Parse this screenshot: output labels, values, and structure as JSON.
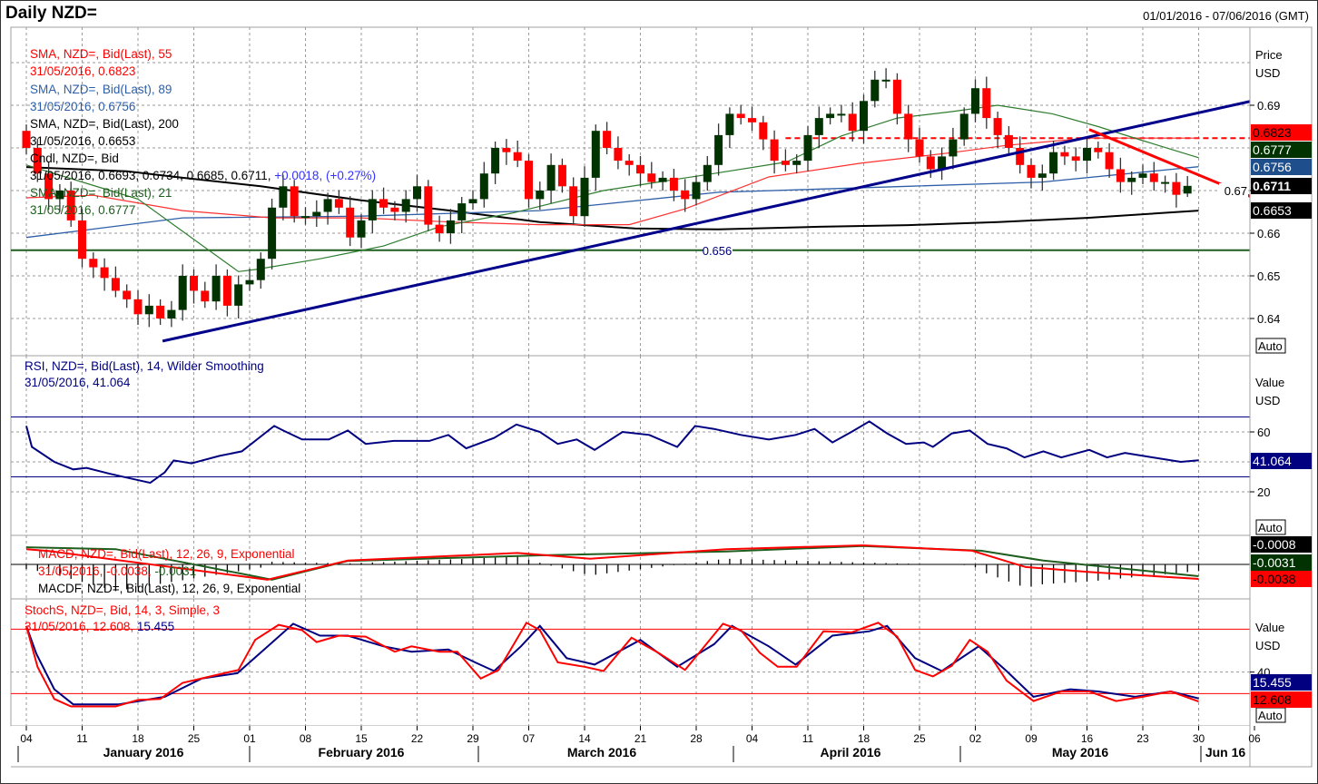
{
  "header": {
    "title": "Daily NZD=",
    "range": "01/01/2016 - 07/06/2016 (GMT)"
  },
  "legends": {
    "sma55": {
      "name": "SMA, NZD=, Bid(Last),  55",
      "value": "31/05/2016, 0.6823",
      "color": "#ff0000"
    },
    "sma89": {
      "name": "SMA, NZD=, Bid(Last),  89",
      "value": "31/05/2016, 0.6756",
      "color": "#2e5fa8"
    },
    "sma200": {
      "name": "SMA, NZD=, Bid(Last),  200",
      "value": "31/05/2016, 0.6653",
      "color": "#000000"
    },
    "cndl": {
      "name": "Cndl, NZD=, Bid",
      "value": "31/05/2016, 0.6693, 0.6734, 0.6685, 0.6711,",
      "change": "+0.0018, (+0.27%)",
      "color": "#000000",
      "change_color": "#3333ff"
    },
    "sma21": {
      "name": "SMA, NZD=, Bid(Last),  21",
      "value": "31/05/2016, 0.6777",
      "color": "#1e5e1e"
    },
    "rsi": {
      "name": "RSI, NZD=, Bid(Last),  14, Wilder Smoothing",
      "value": "31/05/2016, 41.064",
      "color": "#000080"
    },
    "macd": {
      "name": "MACD, NZD=, Bid(Last),  12, 26, 9, Exponential",
      "value": "31/05/2016, -0.0038,",
      "value2": "-0.0031",
      "color": "#ff0000"
    },
    "macdf": {
      "name": "MACDF, NZD=, Bid(Last),  12, 26, 9, Exponential",
      "color": "#000000"
    },
    "stoch": {
      "name": "StochS, NZD=, Bid,  14, 3, Simple, 3",
      "value": "31/05/2016, 12.608,",
      "value2": "15.455",
      "color": "#ff0000"
    }
  },
  "right_axis": {
    "price": {
      "title": "Price",
      "unit": "USD",
      "ticks": [
        "0.69",
        "0.67",
        "0.66",
        "0.65",
        "0.64"
      ],
      "auto": "Auto"
    },
    "rsi": {
      "title": "Value",
      "unit": "USD",
      "ticks": [
        "60",
        "20"
      ],
      "auto": "Auto"
    },
    "stoch": {
      "title": "Value",
      "unit": "USD",
      "ticks": [
        "40"
      ],
      "auto": "Auto"
    },
    "badges": [
      {
        "pane": "price",
        "value": "0.6823",
        "bg": "#ff0000",
        "fg": "#000"
      },
      {
        "pane": "price",
        "value": "0.6777",
        "bg": "#003300",
        "fg": "#fff"
      },
      {
        "pane": "price",
        "value": "0.6756",
        "bg": "#1f4e8c",
        "fg": "#fff"
      },
      {
        "pane": "price",
        "value": "0.6711",
        "bg": "#000000",
        "fg": "#fff"
      },
      {
        "pane": "price",
        "value": "0.6653",
        "bg": "#000000",
        "fg": "#fff"
      },
      {
        "pane": "rsi",
        "value": "41.064",
        "bg": "#000080",
        "fg": "#fff"
      },
      {
        "pane": "macd",
        "value": "-0.0008",
        "bg": "#000000",
        "fg": "#fff"
      },
      {
        "pane": "macd",
        "value": "-0.0031",
        "bg": "#003300",
        "fg": "#fff"
      },
      {
        "pane": "macd",
        "value": "-0.0038",
        "bg": "#ff0000",
        "fg": "#000"
      },
      {
        "pane": "stoch",
        "value": "15.455",
        "bg": "#000080",
        "fg": "#fff"
      },
      {
        "pane": "stoch",
        "value": "12.608",
        "bg": "#ff0000",
        "fg": "#000"
      }
    ]
  },
  "x_axis": {
    "day_labels": [
      "04",
      "11",
      "18",
      "25",
      "01",
      "08",
      "15",
      "22",
      "29",
      "07",
      "14",
      "21",
      "28",
      "04",
      "11",
      "18",
      "25",
      "02",
      "09",
      "16",
      "23",
      "30",
      "06"
    ],
    "months": [
      "January 2016",
      "February 2016",
      "March 2016",
      "April 2016",
      "May 2016",
      "Jun 16"
    ]
  },
  "chart_data": {
    "type": "candlestick",
    "title": "Daily NZD=",
    "ylabel": "Price USD",
    "ylim": [
      0.632,
      0.705
    ],
    "closes": [
      0.68,
      0.674,
      0.668,
      0.67,
      0.663,
      0.654,
      0.652,
      0.6495,
      0.6465,
      0.6445,
      0.641,
      0.643,
      0.64,
      0.642,
      0.65,
      0.6465,
      0.644,
      0.65,
      0.643,
      0.648,
      0.649,
      0.654,
      0.666,
      0.671,
      0.664,
      0.664,
      0.665,
      0.668,
      0.666,
      0.659,
      0.663,
      0.668,
      0.666,
      0.665,
      0.668,
      0.671,
      0.662,
      0.66,
      0.663,
      0.667,
      0.668,
      0.674,
      0.68,
      0.679,
      0.677,
      0.668,
      0.67,
      0.676,
      0.671,
      0.664,
      0.673,
      0.684,
      0.68,
      0.677,
      0.676,
      0.674,
      0.672,
      0.673,
      0.67,
      0.668,
      0.672,
      0.676,
      0.683,
      0.688,
      0.687,
      0.686,
      0.682,
      0.677,
      0.676,
      0.677,
      0.683,
      0.687,
      0.688,
      0.688,
      0.684,
      0.691,
      0.696,
      0.696,
      0.688,
      0.682,
      0.678,
      0.675,
      0.678,
      0.682,
      0.688,
      0.694,
      0.687,
      0.683,
      0.68,
      0.676,
      0.673,
      0.674,
      0.679,
      0.678,
      0.677,
      0.68,
      0.679,
      0.675,
      0.672,
      0.673,
      0.674,
      0.672,
      0.672,
      0.669,
      0.6711
    ],
    "last_ohlc": {
      "open": 0.6693,
      "high": 0.6734,
      "low": 0.6685,
      "close": 0.6711
    },
    "overlays": {
      "sma21": [
        [
          0,
          0.676
        ],
        [
          10,
          0.668
        ],
        [
          19,
          0.651
        ],
        [
          20.6,
          0.6515
        ],
        [
          26.3,
          0.654
        ],
        [
          32,
          0.657
        ],
        [
          37,
          0.6615
        ],
        [
          43.5,
          0.6647
        ],
        [
          51.7,
          0.67
        ],
        [
          56.6,
          0.672
        ],
        [
          61.6,
          0.674
        ],
        [
          68.1,
          0.6767
        ],
        [
          73,
          0.6828
        ],
        [
          78,
          0.687
        ],
        [
          82.9,
          0.6885
        ],
        [
          87,
          0.69
        ],
        [
          91.9,
          0.688
        ],
        [
          96,
          0.685
        ],
        [
          100,
          0.6817
        ],
        [
          105,
          0.6777
        ]
      ],
      "sma55": [
        [
          0,
          0.6683
        ],
        [
          6,
          0.6689
        ],
        [
          14,
          0.6653
        ],
        [
          22,
          0.6636
        ],
        [
          30,
          0.6636
        ],
        [
          38.3,
          0.6626
        ],
        [
          46,
          0.662
        ],
        [
          54,
          0.662
        ],
        [
          59,
          0.6657
        ],
        [
          66.5,
          0.6732
        ],
        [
          74.7,
          0.6764
        ],
        [
          82.9,
          0.6789
        ],
        [
          87.8,
          0.6806
        ],
        [
          95,
          0.6823
        ],
        [
          105,
          0.6823
        ]
      ],
      "sma89": [
        [
          0,
          0.659
        ],
        [
          14,
          0.6636
        ],
        [
          30,
          0.664
        ],
        [
          46,
          0.6653
        ],
        [
          62,
          0.6696
        ],
        [
          79,
          0.671
        ],
        [
          91,
          0.672
        ],
        [
          105,
          0.6756
        ]
      ],
      "sma200": [
        [
          0,
          0.6755
        ],
        [
          9,
          0.6745
        ],
        [
          14,
          0.673
        ],
        [
          21,
          0.671
        ],
        [
          30,
          0.6677
        ],
        [
          38,
          0.6653
        ],
        [
          46,
          0.6626
        ],
        [
          54.5,
          0.6611
        ],
        [
          62,
          0.6609
        ],
        [
          71,
          0.6615
        ],
        [
          79,
          0.6619
        ],
        [
          87,
          0.6626
        ],
        [
          95,
          0.6636
        ],
        [
          105,
          0.6653
        ]
      ]
    },
    "trendlines": [
      {
        "name": "uptrend",
        "color": "#00008b",
        "points": [
          [
            12.2,
            0.6347
          ],
          [
            110.3,
            0.6913
          ]
        ]
      },
      {
        "name": "downtrend",
        "color": "#ff0000",
        "points": [
          [
            95.2,
            0.6843
          ],
          [
            110.3,
            0.6679
          ]
        ]
      }
    ],
    "horizontal_levels": [
      {
        "value": 0.656,
        "label": "0.656",
        "color": "#1e5e1e",
        "style": "solid"
      },
      {
        "value": 0.6823,
        "color": "#ff0000",
        "style": "dashed",
        "from": 68
      }
    ],
    "rsi": {
      "period": 14,
      "levels": [
        70,
        30
      ],
      "points": [
        [
          0,
          64
        ],
        [
          0.5,
          50
        ],
        [
          2.5,
          40
        ],
        [
          4.2,
          35
        ],
        [
          5.4,
          36
        ],
        [
          7.5,
          32
        ],
        [
          9.9,
          28
        ],
        [
          11.1,
          26
        ],
        [
          12.4,
          33
        ],
        [
          13.2,
          41
        ],
        [
          14.8,
          39
        ],
        [
          17.3,
          44
        ],
        [
          19.3,
          47
        ],
        [
          22.2,
          64
        ],
        [
          23,
          61
        ],
        [
          24.7,
          55
        ],
        [
          27.1,
          55
        ],
        [
          28.8,
          61
        ],
        [
          30.4,
          52
        ],
        [
          32.9,
          54
        ],
        [
          36.1,
          54
        ],
        [
          37.8,
          58
        ],
        [
          39.4,
          49
        ],
        [
          41.9,
          56
        ],
        [
          43.9,
          65
        ],
        [
          46,
          60
        ],
        [
          47.6,
          52
        ],
        [
          49.3,
          55
        ],
        [
          50.9,
          48
        ],
        [
          53.4,
          60
        ],
        [
          55.8,
          58
        ],
        [
          58.3,
          50
        ],
        [
          59.9,
          64
        ],
        [
          61.6,
          62
        ],
        [
          64,
          58
        ],
        [
          66.5,
          55
        ],
        [
          68.9,
          58
        ],
        [
          70.6,
          62
        ],
        [
          72.2,
          53
        ],
        [
          73.9,
          60
        ],
        [
          75.5,
          67
        ],
        [
          77.1,
          59
        ],
        [
          78.8,
          52
        ],
        [
          80.4,
          53
        ],
        [
          81.2,
          50
        ],
        [
          82.9,
          59
        ],
        [
          84.5,
          61
        ],
        [
          86.1,
          52
        ],
        [
          87.8,
          49
        ],
        [
          89.4,
          43
        ],
        [
          91.1,
          47
        ],
        [
          92.7,
          43
        ],
        [
          95.2,
          48
        ],
        [
          96.8,
          43
        ],
        [
          98.4,
          46
        ],
        [
          100.9,
          43
        ],
        [
          103.4,
          40
        ],
        [
          105,
          41.064
        ]
      ]
    },
    "macd": {
      "macd": [
        [
          0,
          0.004
        ],
        [
          2,
          0.0035
        ],
        [
          21.6,
          -0.004
        ],
        [
          28.8,
          0.001
        ],
        [
          44,
          0.003
        ],
        [
          50.5,
          0.0015
        ],
        [
          62.7,
          0.004
        ],
        [
          74.9,
          0.005
        ],
        [
          84.7,
          0.0036
        ],
        [
          89.5,
          -0.0007
        ],
        [
          95.2,
          -0.002
        ],
        [
          105,
          -0.0038
        ]
      ],
      "signal": [
        [
          0,
          0.0045
        ],
        [
          8,
          0.004
        ],
        [
          22,
          -0.004
        ],
        [
          28.8,
          0.0009
        ],
        [
          46.4,
          0.0024
        ],
        [
          62.7,
          0.0034
        ],
        [
          74.9,
          0.0048
        ],
        [
          85.5,
          0.0036
        ],
        [
          91.1,
          0.001
        ],
        [
          105,
          -0.0031
        ]
      ]
    },
    "stochastic": {
      "levels": [
        80,
        20
      ],
      "k": [
        [
          0,
          83
        ],
        [
          1,
          45
        ],
        [
          2.5,
          15
        ],
        [
          4,
          8
        ],
        [
          8,
          8
        ],
        [
          10,
          14
        ],
        [
          12,
          15
        ],
        [
          14,
          30
        ],
        [
          16.5,
          36
        ],
        [
          19,
          42
        ],
        [
          20.5,
          70
        ],
        [
          22.6,
          84
        ],
        [
          24.7,
          79
        ],
        [
          26,
          68
        ],
        [
          28,
          74
        ],
        [
          30.4,
          73
        ],
        [
          33,
          59
        ],
        [
          34.5,
          64
        ],
        [
          37,
          59
        ],
        [
          38.6,
          59
        ],
        [
          40.7,
          34
        ],
        [
          42.3,
          42
        ],
        [
          44.8,
          86
        ],
        [
          46,
          79
        ],
        [
          47.6,
          49
        ],
        [
          50,
          45
        ],
        [
          51.7,
          41
        ],
        [
          54.2,
          72
        ],
        [
          56.6,
          58
        ],
        [
          59,
          42
        ],
        [
          62.4,
          85
        ],
        [
          64,
          79
        ],
        [
          65.7,
          58
        ],
        [
          67.3,
          45
        ],
        [
          69,
          45
        ],
        [
          71.4,
          78
        ],
        [
          73.9,
          77
        ],
        [
          76.3,
          86
        ],
        [
          78,
          73
        ],
        [
          79.6,
          42
        ],
        [
          81.2,
          36
        ],
        [
          82.9,
          46
        ],
        [
          84.5,
          70
        ],
        [
          86.1,
          59
        ],
        [
          87.8,
          32
        ],
        [
          90.2,
          13
        ],
        [
          92.7,
          22
        ],
        [
          95.2,
          22
        ],
        [
          97.6,
          13
        ],
        [
          100,
          17
        ],
        [
          102.5,
          22
        ],
        [
          105,
          12.608
        ]
      ],
      "d": [
        [
          0,
          83
        ],
        [
          0.9,
          57
        ],
        [
          2.5,
          24
        ],
        [
          4.2,
          10
        ],
        [
          8.3,
          10
        ],
        [
          12.4,
          17
        ],
        [
          15.7,
          34
        ],
        [
          18.9,
          39
        ],
        [
          21.4,
          62
        ],
        [
          23.9,
          85
        ],
        [
          26.3,
          74
        ],
        [
          28.8,
          74
        ],
        [
          32,
          64
        ],
        [
          34.5,
          59
        ],
        [
          37.8,
          61
        ],
        [
          40.2,
          49
        ],
        [
          41.9,
          41
        ],
        [
          44.3,
          64
        ],
        [
          46,
          83
        ],
        [
          48.4,
          53
        ],
        [
          50.9,
          47
        ],
        [
          55,
          70
        ],
        [
          58.3,
          45
        ],
        [
          61.6,
          66
        ],
        [
          63.2,
          83
        ],
        [
          66.5,
          64
        ],
        [
          68.9,
          47
        ],
        [
          72.2,
          74
        ],
        [
          75.5,
          78
        ],
        [
          77.1,
          83
        ],
        [
          79.6,
          53
        ],
        [
          82,
          41
        ],
        [
          85.3,
          64
        ],
        [
          87.8,
          41
        ],
        [
          90.2,
          17
        ],
        [
          93.5,
          24
        ],
        [
          96,
          22
        ],
        [
          99.3,
          17
        ],
        [
          102.5,
          22
        ],
        [
          105,
          15.455
        ]
      ]
    }
  }
}
